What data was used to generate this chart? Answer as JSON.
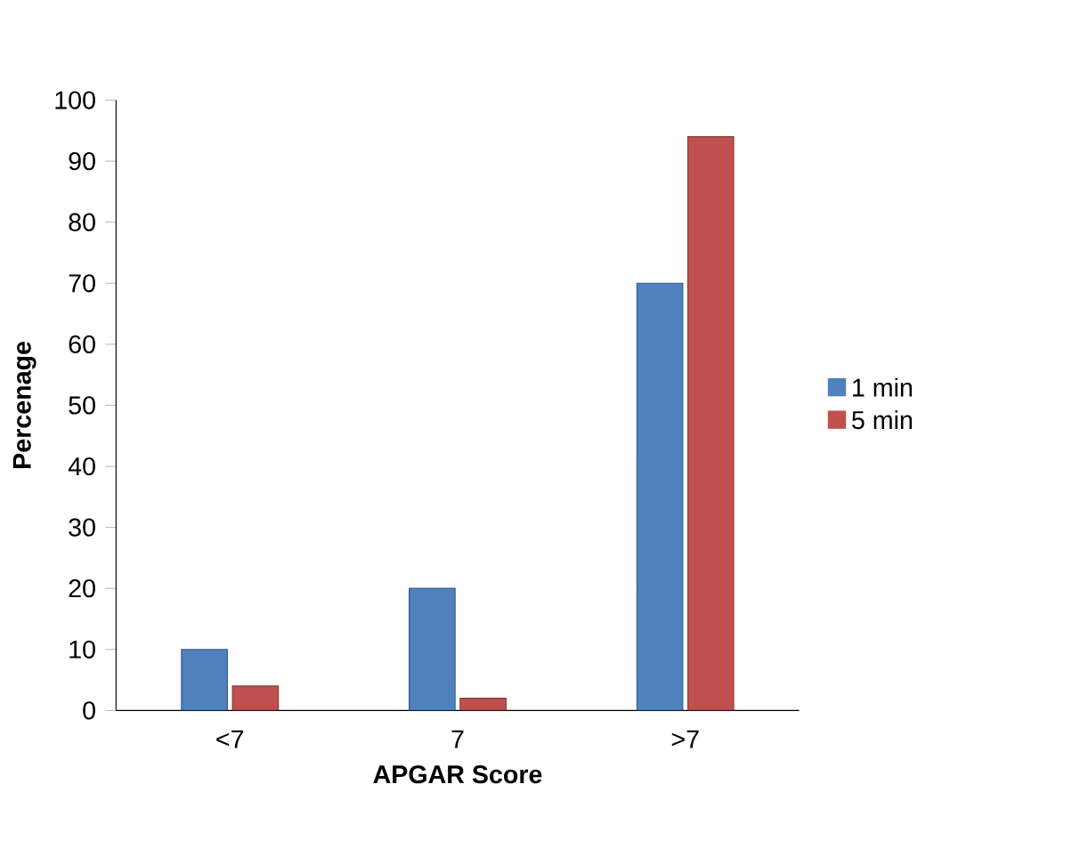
{
  "chart_data": {
    "type": "bar",
    "xlabel": "APGAR Score",
    "ylabel": "Percenage",
    "categories": [
      "<7",
      "7",
      ">7"
    ],
    "series": [
      {
        "name": "1 min",
        "color": "#4f81bd",
        "values": [
          10,
          20,
          70
        ]
      },
      {
        "name": "5 min",
        "color": "#c0504d",
        "values": [
          4,
          2,
          94
        ]
      }
    ],
    "ylim": [
      0,
      100
    ],
    "yticks": [
      0,
      10,
      20,
      30,
      40,
      50,
      60,
      70,
      80,
      90,
      100
    ],
    "legend": "right"
  }
}
